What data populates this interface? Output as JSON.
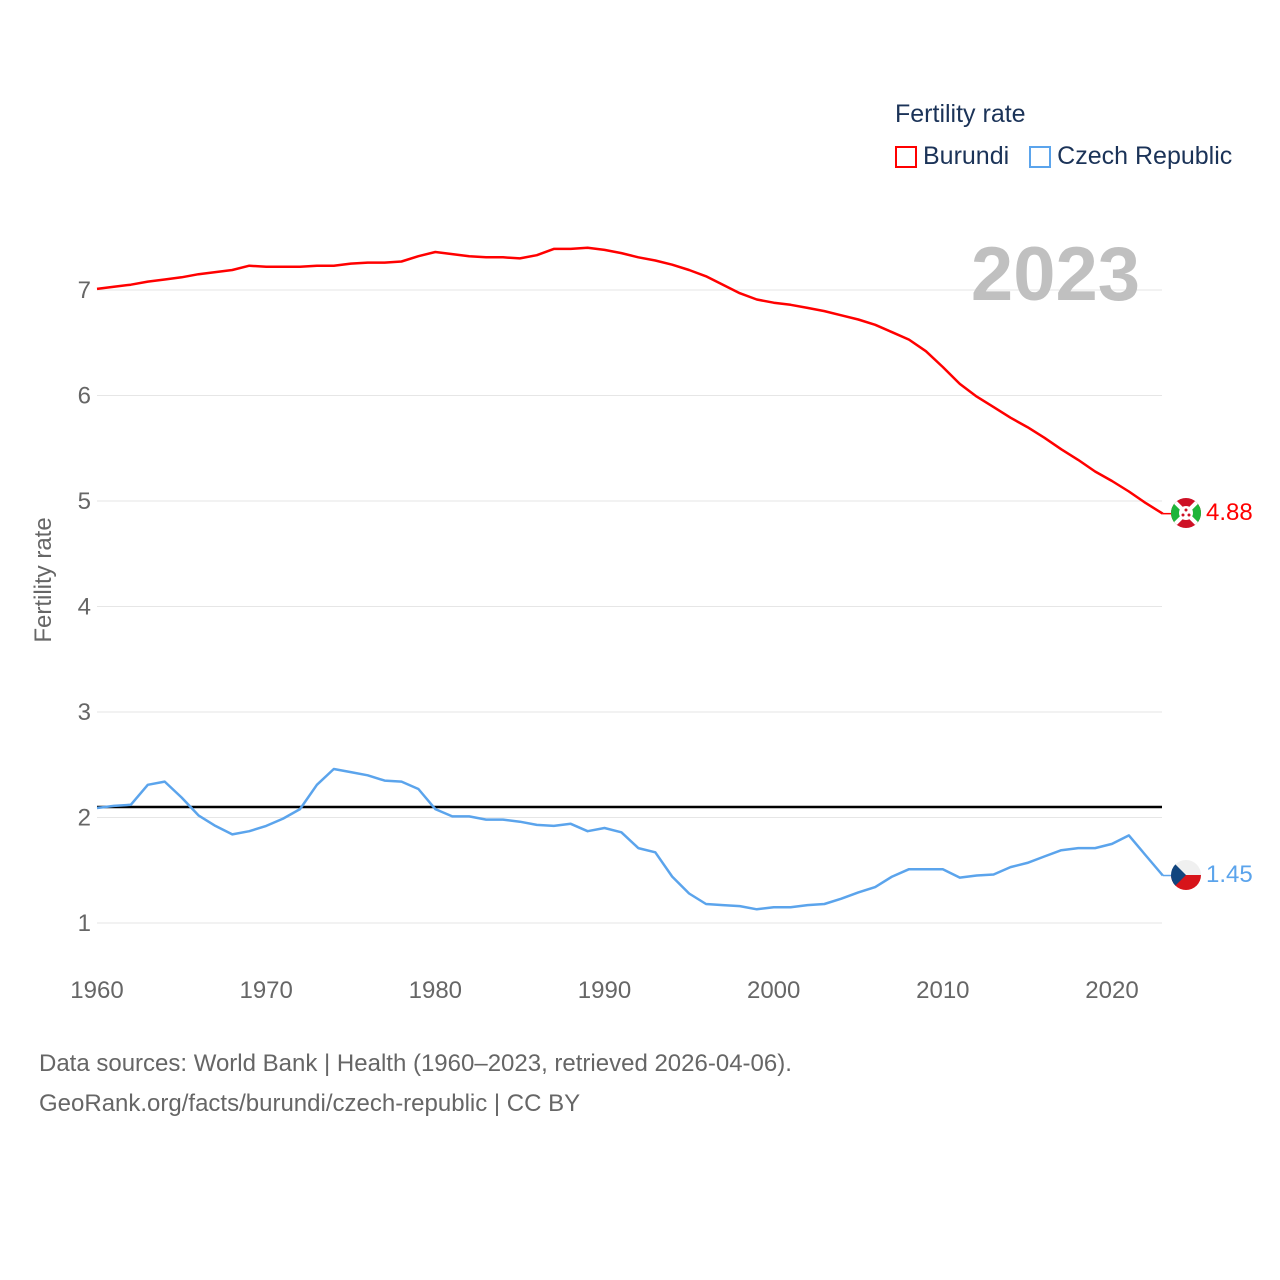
{
  "chart_data": {
    "type": "line",
    "title": "Fertility rate",
    "ylabel": "Fertility rate",
    "xlabel": "",
    "year_label": "2023",
    "xlim": [
      1960,
      2023
    ],
    "ylim": [
      0.7,
      7.6
    ],
    "x_ticks": [
      "1960",
      "1970",
      "1980",
      "1990",
      "2000",
      "2010",
      "2020"
    ],
    "y_ticks": [
      "1",
      "2",
      "3",
      "4",
      "5",
      "6",
      "7"
    ],
    "grid": true,
    "legend_placement": "top-right",
    "reference_line": 2.1,
    "x": [
      1960,
      1961,
      1962,
      1963,
      1964,
      1965,
      1966,
      1967,
      1968,
      1969,
      1970,
      1971,
      1972,
      1973,
      1974,
      1975,
      1976,
      1977,
      1978,
      1979,
      1980,
      1981,
      1982,
      1983,
      1984,
      1985,
      1986,
      1987,
      1988,
      1989,
      1990,
      1991,
      1992,
      1993,
      1994,
      1995,
      1996,
      1997,
      1998,
      1999,
      2000,
      2001,
      2002,
      2003,
      2004,
      2005,
      2006,
      2007,
      2008,
      2009,
      2010,
      2011,
      2012,
      2013,
      2014,
      2015,
      2016,
      2017,
      2018,
      2019,
      2020,
      2021,
      2022,
      2023
    ],
    "series": [
      {
        "name": "Burundi",
        "color": "#ff0000",
        "end_label": "4.88",
        "values": [
          7.01,
          7.03,
          7.05,
          7.08,
          7.1,
          7.12,
          7.15,
          7.17,
          7.19,
          7.23,
          7.22,
          7.22,
          7.22,
          7.23,
          7.23,
          7.25,
          7.26,
          7.26,
          7.27,
          7.32,
          7.36,
          7.34,
          7.32,
          7.31,
          7.31,
          7.3,
          7.33,
          7.39,
          7.39,
          7.4,
          7.38,
          7.35,
          7.31,
          7.28,
          7.24,
          7.19,
          7.13,
          7.05,
          6.97,
          6.91,
          6.88,
          6.86,
          6.83,
          6.8,
          6.76,
          6.72,
          6.67,
          6.6,
          6.53,
          6.42,
          6.27,
          6.11,
          5.99,
          5.89,
          5.79,
          5.7,
          5.6,
          5.49,
          5.39,
          5.28,
          5.19,
          5.09,
          4.98,
          4.88
        ]
      },
      {
        "name": "Czech Republic",
        "color": "#5ba4ec",
        "end_label": "1.45",
        "values": [
          2.09,
          2.11,
          2.12,
          2.31,
          2.34,
          2.19,
          2.02,
          1.92,
          1.84,
          1.87,
          1.92,
          1.99,
          2.08,
          2.31,
          2.46,
          2.43,
          2.4,
          2.35,
          2.34,
          2.27,
          2.08,
          2.01,
          2.01,
          1.98,
          1.98,
          1.96,
          1.93,
          1.92,
          1.94,
          1.87,
          1.9,
          1.86,
          1.71,
          1.67,
          1.44,
          1.28,
          1.18,
          1.17,
          1.16,
          1.13,
          1.15,
          1.15,
          1.17,
          1.18,
          1.23,
          1.29,
          1.34,
          1.44,
          1.51,
          1.51,
          1.51,
          1.43,
          1.45,
          1.46,
          1.53,
          1.57,
          1.63,
          1.69,
          1.71,
          1.71,
          1.75,
          1.83,
          1.64,
          1.45
        ]
      }
    ]
  },
  "source": {
    "line1": "Data sources: World Bank | Health (1960–2023, retrieved 2026-04-06).",
    "line2": "GeoRank.org/facts/burundi/czech-republic | CC BY"
  }
}
